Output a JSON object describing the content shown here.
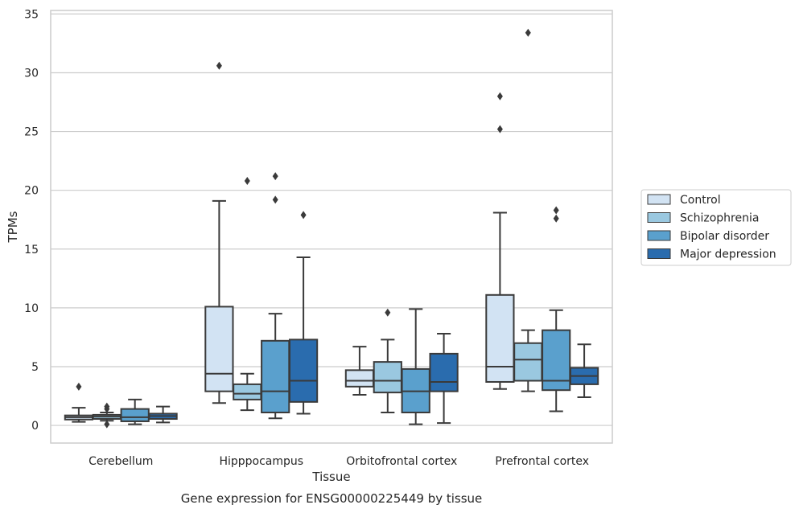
{
  "chart_data": {
    "type": "box",
    "xlabel": "Tissue",
    "ylabel": "TPMs",
    "caption": "Gene expression for ENSG00000225449 by tissue",
    "ylim": [
      -1.5,
      35.3
    ],
    "yticks": [
      0,
      5,
      10,
      15,
      20,
      25,
      30,
      35
    ],
    "grid": "y",
    "legend_position": "right",
    "categories": [
      "Cerebellum",
      "Hipppocampus",
      "Orbitofrontal cortex",
      "Prefrontal cortex"
    ],
    "series": [
      {
        "name": "Control",
        "color": "#d2e3f3",
        "boxes": [
          {
            "whisker_low": 0.3,
            "q1": 0.5,
            "median": 0.7,
            "q3": 0.85,
            "whisker_high": 1.5,
            "outliers": [
              3.3
            ]
          },
          {
            "whisker_low": 1.9,
            "q1": 2.9,
            "median": 4.4,
            "q3": 10.1,
            "whisker_high": 19.1,
            "outliers": [
              30.6
            ]
          },
          {
            "whisker_low": 2.6,
            "q1": 3.3,
            "median": 3.8,
            "q3": 4.7,
            "whisker_high": 6.7,
            "outliers": []
          },
          {
            "whisker_low": 3.1,
            "q1": 3.7,
            "median": 5.0,
            "q3": 11.1,
            "whisker_high": 18.1,
            "outliers": [
              25.2,
              28.0
            ]
          }
        ]
      },
      {
        "name": "Schizophrenia",
        "color": "#9ac8e0",
        "boxes": [
          {
            "whisker_low": 0.4,
            "q1": 0.55,
            "median": 0.75,
            "q3": 0.9,
            "whisker_high": 1.1,
            "outliers": [
              0.1,
              1.4,
              1.6
            ]
          },
          {
            "whisker_low": 1.3,
            "q1": 2.2,
            "median": 2.7,
            "q3": 3.5,
            "whisker_high": 4.4,
            "outliers": [
              20.8
            ]
          },
          {
            "whisker_low": 1.1,
            "q1": 2.8,
            "median": 3.8,
            "q3": 5.4,
            "whisker_high": 7.3,
            "outliers": [
              9.6
            ]
          },
          {
            "whisker_low": 2.9,
            "q1": 3.8,
            "median": 5.6,
            "q3": 7.0,
            "whisker_high": 8.1,
            "outliers": [
              33.4
            ]
          }
        ]
      },
      {
        "name": "Bipolar disorder",
        "color": "#5aa0cd",
        "boxes": [
          {
            "whisker_low": 0.1,
            "q1": 0.35,
            "median": 0.7,
            "q3": 1.4,
            "whisker_high": 2.2,
            "outliers": []
          },
          {
            "whisker_low": 0.6,
            "q1": 1.1,
            "median": 2.9,
            "q3": 7.2,
            "whisker_high": 9.5,
            "outliers": [
              19.2,
              21.2
            ]
          },
          {
            "whisker_low": 0.1,
            "q1": 1.1,
            "median": 2.9,
            "q3": 4.8,
            "whisker_high": 9.9,
            "outliers": []
          },
          {
            "whisker_low": 1.2,
            "q1": 3.0,
            "median": 3.8,
            "q3": 8.1,
            "whisker_high": 9.8,
            "outliers": [
              17.6,
              18.3
            ]
          }
        ]
      },
      {
        "name": "Major depression",
        "color": "#2a6cae",
        "boxes": [
          {
            "whisker_low": 0.25,
            "q1": 0.55,
            "median": 0.8,
            "q3": 1.0,
            "whisker_high": 1.6,
            "outliers": []
          },
          {
            "whisker_low": 1.0,
            "q1": 2.0,
            "median": 3.8,
            "q3": 7.3,
            "whisker_high": 14.3,
            "outliers": [
              17.9
            ]
          },
          {
            "whisker_low": 0.2,
            "q1": 2.9,
            "median": 3.7,
            "q3": 6.1,
            "whisker_high": 7.8,
            "outliers": []
          },
          {
            "whisker_low": 2.4,
            "q1": 3.5,
            "median": 4.2,
            "q3": 4.9,
            "whisker_high": 6.9,
            "outliers": []
          }
        ]
      }
    ]
  }
}
